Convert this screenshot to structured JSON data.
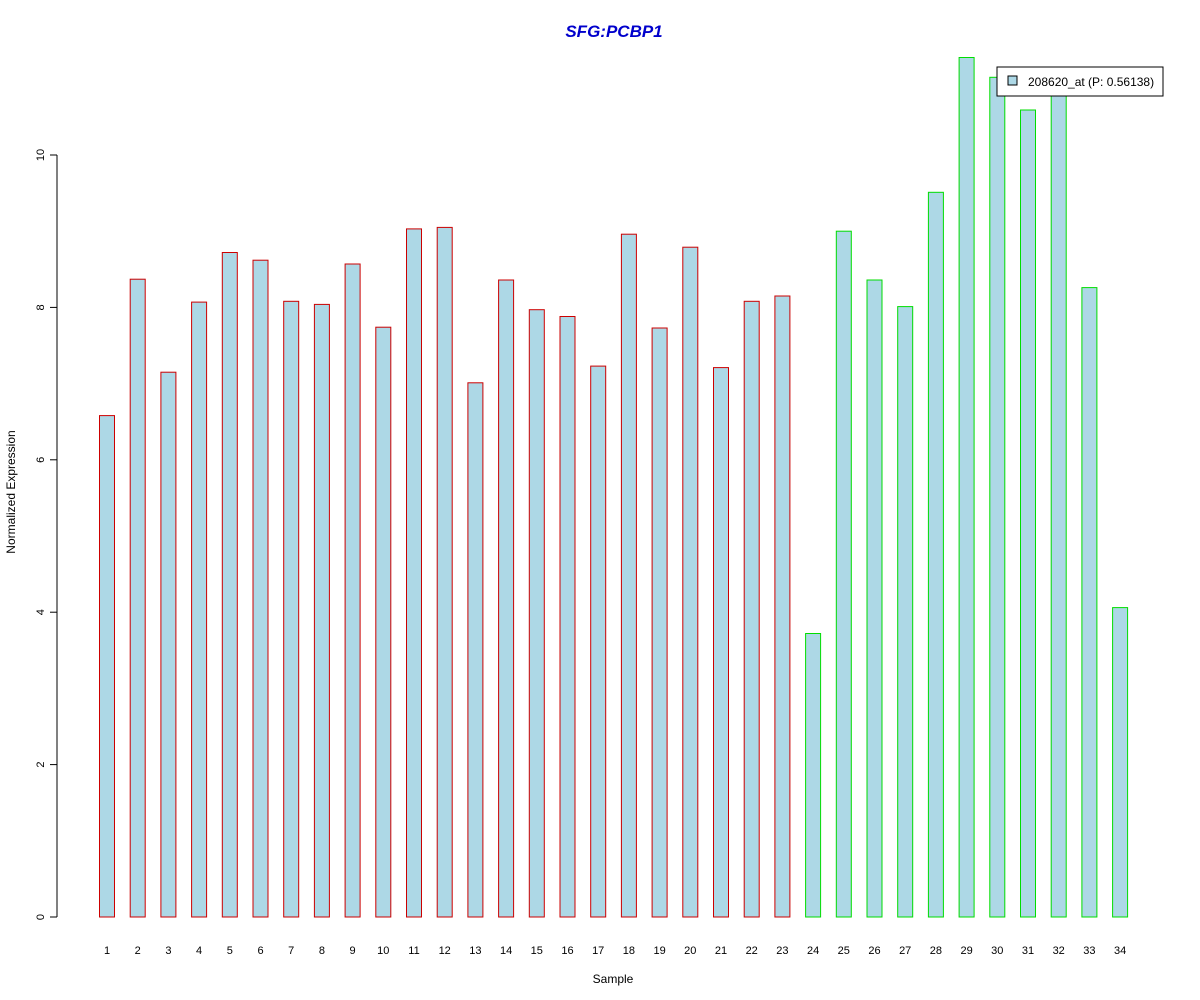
{
  "chart_data": {
    "type": "bar",
    "title": "SFG:PCBP1",
    "xlabel": "Sample",
    "ylabel": "Normalized Expression",
    "ylim": [
      0,
      11.3
    ],
    "yticks": [
      0,
      2,
      4,
      6,
      8,
      10
    ],
    "categories": [
      "1",
      "2",
      "3",
      "4",
      "5",
      "6",
      "7",
      "8",
      "9",
      "10",
      "11",
      "12",
      "13",
      "14",
      "15",
      "16",
      "17",
      "18",
      "19",
      "20",
      "21",
      "22",
      "23",
      "24",
      "25",
      "26",
      "27",
      "28",
      "29",
      "30",
      "31",
      "32",
      "33",
      "34"
    ],
    "series": [
      {
        "name": "208620_at (P: 0.56138)",
        "values": [
          6.58,
          8.37,
          7.15,
          8.07,
          8.72,
          8.62,
          8.08,
          8.04,
          8.57,
          7.74,
          9.03,
          9.05,
          7.01,
          8.36,
          7.97,
          7.88,
          7.23,
          8.96,
          7.73,
          8.79,
          7.21,
          8.08,
          8.15,
          3.72,
          9.0,
          8.36,
          8.01,
          9.51,
          11.28,
          11.02,
          10.59,
          10.85,
          8.26,
          4.06
        ]
      }
    ],
    "groups": [
      {
        "samples": "1-23",
        "border_color": "#cc0000"
      },
      {
        "samples": "24-34",
        "border_color": "#00dd00"
      }
    ],
    "colors": {
      "bar_fill": "#add8e6",
      "title": "#0000cc",
      "group1_border": "#cc0000",
      "group2_border": "#00dd00"
    },
    "grid": false,
    "legend_position": "top-right"
  }
}
